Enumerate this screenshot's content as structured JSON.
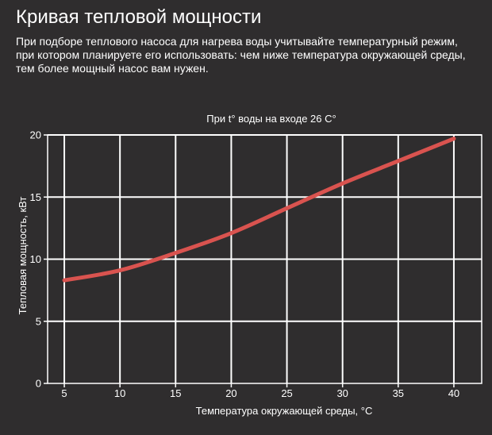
{
  "page": {
    "heading": "Кривая тепловой мощности",
    "intro_lines": [
      "При подборе теплового насоса для нагрева воды учитывайте температурный режим,",
      "при котором планируете его использовать: чем ниже температура окружающей среды,",
      "тем более мощный насос вам нужен."
    ]
  },
  "colors": {
    "background": "#2f2d2e",
    "grid": "#ffffff",
    "line": "#d9534f",
    "text": "#ffffff"
  },
  "chart_data": {
    "type": "line",
    "title": "При t° воды на входе 26 С°",
    "xlabel": "Температура окружающей среды, °С",
    "ylabel": "Тепловая мощность, кВт",
    "xlim": [
      3.5,
      42.5
    ],
    "ylim": [
      0,
      20
    ],
    "x_ticks": [
      5,
      10,
      15,
      20,
      25,
      30,
      35,
      40
    ],
    "y_ticks": [
      0,
      5,
      10,
      15,
      20
    ],
    "grid": true,
    "series": [
      {
        "x": [
          5,
          10,
          15,
          20,
          25,
          30,
          35,
          40
        ],
        "values": [
          8.3,
          9.1,
          10.5,
          12.1,
          14.1,
          16.1,
          17.9,
          19.7
        ]
      }
    ]
  }
}
